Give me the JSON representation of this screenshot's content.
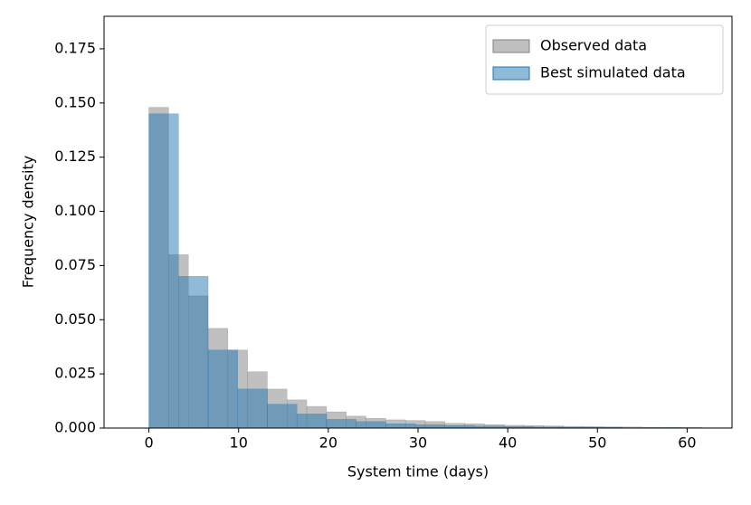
{
  "chart_data": {
    "type": "histogram",
    "xlabel": "System time (days)",
    "ylabel": "Frequency density",
    "xlim": [
      -5,
      65
    ],
    "ylim": [
      0,
      0.19
    ],
    "xticks": [
      0,
      10,
      20,
      30,
      40,
      50,
      60
    ],
    "yticks": [
      {
        "value": 0,
        "label": "0.000"
      },
      {
        "value": 0.025,
        "label": "0.025"
      },
      {
        "value": 0.05,
        "label": "0.050"
      },
      {
        "value": 0.075,
        "label": "0.075"
      },
      {
        "value": 0.1,
        "label": "0.100"
      },
      {
        "value": 0.125,
        "label": "0.125"
      },
      {
        "value": 0.15,
        "label": "0.150"
      },
      {
        "value": 0.175,
        "label": "0.175"
      }
    ],
    "legend": "upper right",
    "series": [
      {
        "name": "Observed data",
        "color": "#808080",
        "bins": [
          0,
          2.2,
          4.4,
          6.6,
          8.8,
          11,
          13.2,
          15.4,
          17.6,
          19.8,
          22,
          24.2,
          26.4,
          28.6,
          30.8,
          33,
          35.2,
          37.4,
          39.6,
          41.8,
          44,
          46.2,
          48.4,
          50.6,
          52.8,
          55,
          57.2,
          59.4,
          61.6,
          63.8,
          66
        ],
        "values": [
          0.148,
          0.08,
          0.061,
          0.046,
          0.036,
          0.026,
          0.018,
          0.013,
          0.01,
          0.0075,
          0.0055,
          0.0045,
          0.0038,
          0.0035,
          0.003,
          0.0022,
          0.002,
          0.0016,
          0.0013,
          0.0012,
          0.001,
          0.0008,
          0.0007,
          0.0006,
          0.0005,
          0.0004,
          0.0003,
          0.0003,
          0.0002,
          0.0002
        ]
      },
      {
        "name": "Best simulated data",
        "color": "#1f77b4",
        "bins": [
          0,
          3.3,
          6.6,
          9.9,
          13.2,
          16.5,
          19.8,
          23.1,
          26.4,
          29.7,
          33,
          36.3,
          39.6,
          42.9,
          46.2,
          49.5,
          52.8,
          56.1,
          59.4,
          62.7,
          66
        ],
        "values": [
          0.145,
          0.07,
          0.036,
          0.018,
          0.011,
          0.0065,
          0.004,
          0.003,
          0.002,
          0.0015,
          0.0012,
          0.0009,
          0.0007,
          0.0005,
          0.0004,
          0.0003,
          0.0002,
          0.0002,
          0.0001,
          0.0001
        ]
      }
    ]
  }
}
